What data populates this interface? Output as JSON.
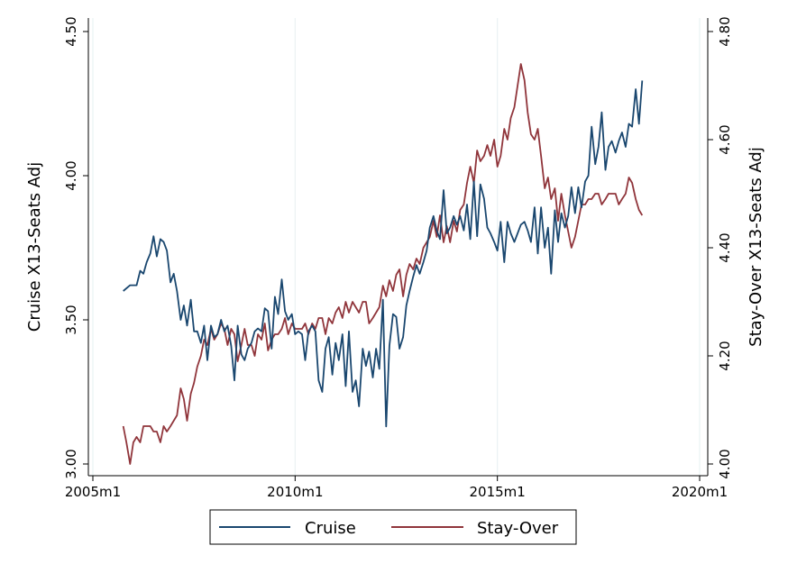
{
  "chart_data": {
    "type": "line",
    "x_axis": {
      "ticks": [
        2005,
        2010,
        2015,
        2020
      ],
      "tick_labels": [
        "2005m1",
        "2010m1",
        "2015m1",
        "2020m1"
      ],
      "range": [
        2005,
        2020.2
      ],
      "grid": true
    },
    "y_left": {
      "label": "Cruise X13-Seats Adj",
      "ticks": [
        3.0,
        3.5,
        4.0,
        4.5
      ],
      "tick_labels": [
        "3.00",
        "3.50",
        "4.00",
        "4.50"
      ],
      "range": [
        3.0,
        4.5
      ]
    },
    "y_right": {
      "label": "Stay-Over X13-Seats Adj",
      "ticks": [
        4.0,
        4.2,
        4.4,
        4.6,
        4.8
      ],
      "tick_labels": [
        "4.00",
        "4.20",
        "4.40",
        "4.60",
        "4.80"
      ],
      "range": [
        4.0,
        4.8
      ]
    },
    "legend": {
      "position": "bottom"
    },
    "series": [
      {
        "name": "Cruise",
        "axis": "left",
        "color": "#1a476f",
        "x": [
          2005.75,
          2005.92,
          2006.08,
          2006.17,
          2006.25,
          2006.33,
          2006.42,
          2006.5,
          2006.58,
          2006.67,
          2006.75,
          2006.83,
          2006.92,
          2007.0,
          2007.08,
          2007.17,
          2007.25,
          2007.33,
          2007.42,
          2007.5,
          2007.58,
          2007.67,
          2007.75,
          2007.83,
          2007.92,
          2008.0,
          2008.08,
          2008.17,
          2008.25,
          2008.33,
          2008.42,
          2008.5,
          2008.58,
          2008.67,
          2008.75,
          2008.83,
          2008.92,
          2009.0,
          2009.08,
          2009.17,
          2009.25,
          2009.33,
          2009.42,
          2009.5,
          2009.58,
          2009.67,
          2009.75,
          2009.83,
          2009.92,
          2010.0,
          2010.08,
          2010.17,
          2010.25,
          2010.33,
          2010.42,
          2010.5,
          2010.58,
          2010.67,
          2010.75,
          2010.83,
          2010.92,
          2011.0,
          2011.08,
          2011.17,
          2011.25,
          2011.33,
          2011.42,
          2011.5,
          2011.58,
          2011.67,
          2011.75,
          2011.83,
          2011.92,
          2012.0,
          2012.08,
          2012.17,
          2012.25,
          2012.33,
          2012.42,
          2012.5,
          2012.58,
          2012.67,
          2012.75,
          2012.83,
          2012.92,
          2013.0,
          2013.08,
          2013.17,
          2013.25,
          2013.33,
          2013.42,
          2013.5,
          2013.58,
          2013.67,
          2013.75,
          2013.83,
          2013.92,
          2014.0,
          2014.08,
          2014.17,
          2014.25,
          2014.33,
          2014.42,
          2014.5,
          2014.58,
          2014.67,
          2014.75,
          2014.83,
          2014.92,
          2015.0,
          2015.08,
          2015.17,
          2015.25,
          2015.33,
          2015.42,
          2015.5,
          2015.58,
          2015.67,
          2015.75,
          2015.83,
          2015.92,
          2016.0,
          2016.08,
          2016.17,
          2016.25,
          2016.33,
          2016.42,
          2016.5,
          2016.58,
          2016.67,
          2016.75,
          2016.83,
          2016.92,
          2017.0,
          2017.08,
          2017.17,
          2017.25,
          2017.33,
          2017.42,
          2017.5,
          2017.58,
          2017.67,
          2017.75,
          2017.83,
          2017.92,
          2018.0,
          2018.08,
          2018.17,
          2018.25,
          2018.33,
          2018.42,
          2018.5,
          2018.58
        ],
        "y": [
          3.6,
          3.62,
          3.62,
          3.67,
          3.66,
          3.7,
          3.73,
          3.79,
          3.72,
          3.78,
          3.77,
          3.74,
          3.63,
          3.66,
          3.6,
          3.5,
          3.55,
          3.48,
          3.57,
          3.46,
          3.46,
          3.42,
          3.48,
          3.36,
          3.48,
          3.44,
          3.45,
          3.5,
          3.46,
          3.48,
          3.41,
          3.29,
          3.48,
          3.38,
          3.36,
          3.4,
          3.42,
          3.46,
          3.47,
          3.46,
          3.54,
          3.53,
          3.4,
          3.58,
          3.52,
          3.64,
          3.53,
          3.5,
          3.52,
          3.45,
          3.46,
          3.45,
          3.36,
          3.46,
          3.48,
          3.46,
          3.29,
          3.25,
          3.4,
          3.44,
          3.31,
          3.42,
          3.36,
          3.45,
          3.27,
          3.46,
          3.25,
          3.29,
          3.2,
          3.4,
          3.34,
          3.39,
          3.3,
          3.4,
          3.33,
          3.57,
          3.13,
          3.41,
          3.52,
          3.51,
          3.4,
          3.44,
          3.55,
          3.6,
          3.65,
          3.69,
          3.66,
          3.7,
          3.74,
          3.82,
          3.86,
          3.81,
          3.78,
          3.95,
          3.8,
          3.82,
          3.86,
          3.83,
          3.86,
          3.81,
          3.9,
          3.78,
          3.98,
          3.79,
          3.97,
          3.92,
          3.82,
          3.8,
          3.77,
          3.74,
          3.84,
          3.7,
          3.84,
          3.8,
          3.77,
          3.8,
          3.83,
          3.84,
          3.81,
          3.77,
          3.89,
          3.73,
          3.89,
          3.75,
          3.82,
          3.66,
          3.88,
          3.77,
          3.87,
          3.82,
          3.86,
          3.96,
          3.87,
          3.96,
          3.89,
          3.98,
          4.0,
          4.17,
          4.04,
          4.1,
          4.22,
          4.02,
          4.1,
          4.12,
          4.08,
          4.12,
          4.15,
          4.1,
          4.18,
          4.17,
          4.3,
          4.18,
          4.33
        ]
      },
      {
        "name": "Stay-Over",
        "axis": "right",
        "color": "#90353b",
        "x": [
          2005.75,
          2005.83,
          2005.92,
          2006.0,
          2006.08,
          2006.17,
          2006.25,
          2006.33,
          2006.42,
          2006.5,
          2006.58,
          2006.67,
          2006.75,
          2006.83,
          2006.92,
          2007.0,
          2007.08,
          2007.17,
          2007.25,
          2007.33,
          2007.42,
          2007.5,
          2007.58,
          2007.67,
          2007.75,
          2007.83,
          2007.92,
          2008.0,
          2008.08,
          2008.17,
          2008.25,
          2008.33,
          2008.42,
          2008.5,
          2008.58,
          2008.67,
          2008.75,
          2008.83,
          2008.92,
          2009.0,
          2009.08,
          2009.17,
          2009.25,
          2009.33,
          2009.42,
          2009.5,
          2009.58,
          2009.67,
          2009.75,
          2009.83,
          2009.92,
          2010.0,
          2010.08,
          2010.17,
          2010.25,
          2010.33,
          2010.42,
          2010.5,
          2010.58,
          2010.67,
          2010.75,
          2010.83,
          2010.92,
          2011.0,
          2011.08,
          2011.17,
          2011.25,
          2011.33,
          2011.42,
          2011.5,
          2011.58,
          2011.67,
          2011.75,
          2011.83,
          2011.92,
          2012.0,
          2012.08,
          2012.17,
          2012.25,
          2012.33,
          2012.42,
          2012.5,
          2012.58,
          2012.67,
          2012.75,
          2012.83,
          2012.92,
          2013.0,
          2013.08,
          2013.17,
          2013.25,
          2013.33,
          2013.42,
          2013.5,
          2013.58,
          2013.67,
          2013.75,
          2013.83,
          2013.92,
          2014.0,
          2014.08,
          2014.17,
          2014.25,
          2014.33,
          2014.42,
          2014.5,
          2014.58,
          2014.67,
          2014.75,
          2014.83,
          2014.92,
          2015.0,
          2015.08,
          2015.17,
          2015.25,
          2015.33,
          2015.42,
          2015.5,
          2015.58,
          2015.67,
          2015.75,
          2015.83,
          2015.92,
          2016.0,
          2016.08,
          2016.17,
          2016.25,
          2016.33,
          2016.42,
          2016.5,
          2016.58,
          2016.67,
          2016.75,
          2016.83,
          2016.92,
          2017.0,
          2017.08,
          2017.17,
          2017.25,
          2017.33,
          2017.42,
          2017.5,
          2017.58,
          2017.67,
          2017.75,
          2017.83,
          2017.92,
          2018.0,
          2018.08,
          2018.17,
          2018.25,
          2018.33,
          2018.42,
          2018.5,
          2018.58
        ],
        "y": [
          4.07,
          4.04,
          4.0,
          4.04,
          4.05,
          4.04,
          4.07,
          4.07,
          4.07,
          4.06,
          4.06,
          4.04,
          4.07,
          4.06,
          4.07,
          4.08,
          4.09,
          4.14,
          4.12,
          4.08,
          4.13,
          4.15,
          4.18,
          4.2,
          4.23,
          4.22,
          4.25,
          4.23,
          4.24,
          4.26,
          4.25,
          4.22,
          4.25,
          4.24,
          4.19,
          4.22,
          4.25,
          4.22,
          4.22,
          4.2,
          4.24,
          4.23,
          4.26,
          4.21,
          4.23,
          4.24,
          4.24,
          4.25,
          4.27,
          4.24,
          4.26,
          4.25,
          4.25,
          4.25,
          4.26,
          4.24,
          4.26,
          4.25,
          4.27,
          4.27,
          4.24,
          4.27,
          4.26,
          4.28,
          4.29,
          4.27,
          4.3,
          4.28,
          4.3,
          4.29,
          4.28,
          4.3,
          4.3,
          4.26,
          4.27,
          4.28,
          4.29,
          4.33,
          4.31,
          4.34,
          4.32,
          4.35,
          4.36,
          4.31,
          4.35,
          4.37,
          4.36,
          4.38,
          4.37,
          4.4,
          4.41,
          4.42,
          4.45,
          4.42,
          4.46,
          4.41,
          4.44,
          4.41,
          4.45,
          4.43,
          4.47,
          4.48,
          4.52,
          4.55,
          4.52,
          4.58,
          4.56,
          4.57,
          4.59,
          4.57,
          4.6,
          4.55,
          4.57,
          4.62,
          4.6,
          4.64,
          4.66,
          4.7,
          4.74,
          4.71,
          4.65,
          4.61,
          4.6,
          4.62,
          4.57,
          4.51,
          4.53,
          4.49,
          4.51,
          4.45,
          4.5,
          4.46,
          4.43,
          4.4,
          4.42,
          4.45,
          4.48,
          4.48,
          4.49,
          4.49,
          4.5,
          4.5,
          4.48,
          4.49,
          4.5,
          4.5,
          4.5,
          4.48,
          4.49,
          4.5,
          4.53,
          4.52,
          4.49,
          4.47,
          4.46
        ]
      }
    ]
  }
}
